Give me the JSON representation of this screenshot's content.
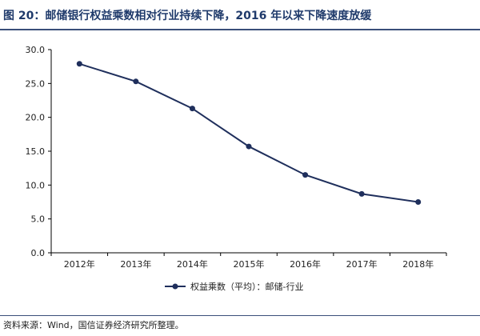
{
  "figure": {
    "title": "图 20：邮储银行权益乘数相对行业持续下降，2016 年以来下降速度放缓",
    "source": "资料来源：Wind，国信证券经济研究所整理。",
    "line_color": "#1f2f5c"
  },
  "chart_data": {
    "type": "line",
    "categories": [
      "2012年",
      "2013年",
      "2014年",
      "2015年",
      "2016年",
      "2017年",
      "2018年"
    ],
    "series": [
      {
        "name": "权益乘数（平均）：邮储-行业",
        "values": [
          27.9,
          25.3,
          21.3,
          15.7,
          11.5,
          8.7,
          7.5
        ]
      }
    ],
    "ylim": [
      0,
      30
    ],
    "yticks": [
      "0.0",
      "5.0",
      "10.0",
      "15.0",
      "20.0",
      "25.0",
      "30.0"
    ],
    "legend_position": "bottom",
    "grid": false
  }
}
